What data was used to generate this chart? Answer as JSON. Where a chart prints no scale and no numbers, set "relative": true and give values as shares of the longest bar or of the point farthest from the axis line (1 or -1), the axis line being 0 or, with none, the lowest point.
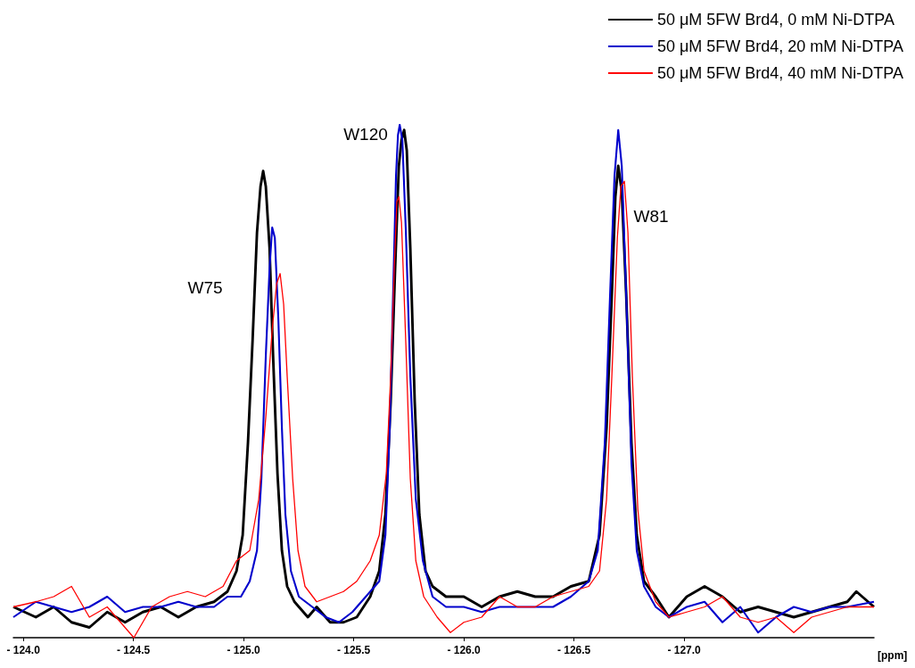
{
  "chart_data": {
    "type": "line",
    "relative": true,
    "xlabel": "[ppm]",
    "xlim": [
      -123.955,
      -127.862
    ],
    "xticks": [
      {
        "value": -124.0,
        "label": "- 124.0"
      },
      {
        "value": -124.5,
        "label": "- 124.5"
      },
      {
        "value": -125.0,
        "label": "- 125.0"
      },
      {
        "value": -125.5,
        "label": "- 125.5"
      },
      {
        "value": -126.0,
        "label": "- 126.0"
      },
      {
        "value": -126.5,
        "label": "- 126.5"
      },
      {
        "value": -127.0,
        "label": "- 127.0"
      }
    ],
    "grid": false,
    "legend": "top right",
    "marker": "none",
    "line_style": "solid",
    "annotations": [
      "W75",
      "W120",
      "W81"
    ],
    "series": [
      {
        "name": "50 μM 5FW Brd4, 0 mM Ni-DTPA",
        "color": "#000000",
        "x": [
          -123.955,
          -124.057,
          -124.138,
          -124.219,
          -124.3,
          -124.381,
          -124.462,
          -124.543,
          -124.624,
          -124.704,
          -124.785,
          -124.866,
          -124.927,
          -124.968,
          -124.996,
          -125.02,
          -125.041,
          -125.061,
          -125.077,
          -125.089,
          -125.101,
          -125.118,
          -125.134,
          -125.154,
          -125.174,
          -125.198,
          -125.231,
          -125.292,
          -125.332,
          -125.393,
          -125.454,
          -125.514,
          -125.575,
          -125.616,
          -125.644,
          -125.668,
          -125.688,
          -125.705,
          -125.717,
          -125.729,
          -125.741,
          -125.757,
          -125.777,
          -125.798,
          -125.826,
          -125.858,
          -125.919,
          -126.0,
          -126.081,
          -126.162,
          -126.243,
          -126.324,
          -126.405,
          -126.486,
          -126.567,
          -126.616,
          -126.648,
          -126.672,
          -126.688,
          -126.701,
          -126.717,
          -126.737,
          -126.761,
          -126.785,
          -126.818,
          -126.871,
          -126.931,
          -127.012,
          -127.093,
          -127.174,
          -127.255,
          -127.336,
          -127.417,
          -127.498,
          -127.579,
          -127.66,
          -127.741,
          -127.782,
          -127.862
        ],
        "values": [
          0.06,
          0.04,
          0.06,
          0.03,
          0.02,
          0.05,
          0.03,
          0.05,
          0.06,
          0.04,
          0.06,
          0.07,
          0.09,
          0.13,
          0.2,
          0.38,
          0.58,
          0.79,
          0.88,
          0.91,
          0.88,
          0.76,
          0.55,
          0.32,
          0.17,
          0.1,
          0.07,
          0.04,
          0.06,
          0.03,
          0.03,
          0.04,
          0.08,
          0.13,
          0.24,
          0.46,
          0.72,
          0.92,
          0.97,
          0.99,
          0.95,
          0.76,
          0.46,
          0.24,
          0.13,
          0.1,
          0.08,
          0.08,
          0.06,
          0.08,
          0.09,
          0.08,
          0.08,
          0.1,
          0.11,
          0.2,
          0.41,
          0.67,
          0.86,
          0.92,
          0.87,
          0.67,
          0.38,
          0.2,
          0.11,
          0.08,
          0.04,
          0.08,
          0.1,
          0.08,
          0.05,
          0.06,
          0.05,
          0.04,
          0.05,
          0.06,
          0.07,
          0.09,
          0.06
        ]
      },
      {
        "name": "50 μM 5FW Brd4, 20 mM Ni-DTPA",
        "color": "#0000cc",
        "x": [
          -123.955,
          -124.057,
          -124.138,
          -124.219,
          -124.3,
          -124.381,
          -124.462,
          -124.543,
          -124.624,
          -124.704,
          -124.785,
          -124.866,
          -124.927,
          -124.988,
          -125.028,
          -125.061,
          -125.081,
          -125.101,
          -125.118,
          -125.13,
          -125.142,
          -125.158,
          -125.174,
          -125.19,
          -125.215,
          -125.251,
          -125.312,
          -125.373,
          -125.433,
          -125.494,
          -125.555,
          -125.616,
          -125.644,
          -125.664,
          -125.68,
          -125.692,
          -125.701,
          -125.709,
          -125.721,
          -125.737,
          -125.757,
          -125.782,
          -125.814,
          -125.858,
          -125.919,
          -126.0,
          -126.081,
          -126.162,
          -126.243,
          -126.324,
          -126.405,
          -126.486,
          -126.567,
          -126.608,
          -126.64,
          -126.664,
          -126.684,
          -126.701,
          -126.717,
          -126.737,
          -126.761,
          -126.785,
          -126.818,
          -126.871,
          -126.931,
          -127.012,
          -127.093,
          -127.174,
          -127.255,
          -127.336,
          -127.417,
          -127.498,
          -127.579,
          -127.66,
          -127.741,
          -127.862
        ],
        "values": [
          0.04,
          0.07,
          0.06,
          0.05,
          0.06,
          0.08,
          0.05,
          0.06,
          0.06,
          0.07,
          0.06,
          0.06,
          0.08,
          0.08,
          0.11,
          0.17,
          0.31,
          0.55,
          0.72,
          0.8,
          0.78,
          0.62,
          0.41,
          0.24,
          0.13,
          0.08,
          0.06,
          0.04,
          0.03,
          0.05,
          0.08,
          0.11,
          0.2,
          0.41,
          0.69,
          0.9,
          0.98,
          1,
          0.97,
          0.79,
          0.51,
          0.27,
          0.15,
          0.08,
          0.06,
          0.06,
          0.05,
          0.06,
          0.06,
          0.06,
          0.06,
          0.08,
          0.11,
          0.17,
          0.38,
          0.67,
          0.9,
          0.99,
          0.92,
          0.67,
          0.34,
          0.17,
          0.1,
          0.06,
          0.04,
          0.06,
          0.07,
          0.03,
          0.06,
          0.01,
          0.04,
          0.06,
          0.05,
          0.06,
          0.06,
          0.07
        ]
      },
      {
        "name": "50 μM 5FW Brd4, 40 mM Ni-DTPA",
        "color": "#ff0000",
        "x": [
          -123.955,
          -124.057,
          -124.138,
          -124.219,
          -124.3,
          -124.381,
          -124.502,
          -124.583,
          -124.664,
          -124.745,
          -124.826,
          -124.907,
          -124.968,
          -125.028,
          -125.069,
          -125.101,
          -125.13,
          -125.15,
          -125.166,
          -125.182,
          -125.198,
          -125.223,
          -125.247,
          -125.279,
          -125.332,
          -125.393,
          -125.454,
          -125.514,
          -125.575,
          -125.616,
          -125.648,
          -125.668,
          -125.684,
          -125.696,
          -125.705,
          -125.717,
          -125.737,
          -125.757,
          -125.782,
          -125.818,
          -125.879,
          -125.939,
          -126.0,
          -126.081,
          -126.162,
          -126.243,
          -126.324,
          -126.405,
          -126.486,
          -126.567,
          -126.616,
          -126.648,
          -126.672,
          -126.697,
          -126.713,
          -126.729,
          -126.745,
          -126.765,
          -126.79,
          -126.818,
          -126.871,
          -126.931,
          -127.012,
          -127.093,
          -127.174,
          -127.255,
          -127.336,
          -127.417,
          -127.498,
          -127.579,
          -127.66,
          -127.741,
          -127.862
        ],
        "values": [
          0.06,
          0.07,
          0.08,
          0.1,
          0.04,
          0.06,
          0,
          0.06,
          0.08,
          0.09,
          0.08,
          0.1,
          0.15,
          0.17,
          0.27,
          0.43,
          0.6,
          0.69,
          0.71,
          0.65,
          0.51,
          0.31,
          0.17,
          0.1,
          0.07,
          0.08,
          0.09,
          0.11,
          0.15,
          0.2,
          0.32,
          0.51,
          0.72,
          0.85,
          0.86,
          0.81,
          0.57,
          0.31,
          0.15,
          0.08,
          0.04,
          0.01,
          0.03,
          0.04,
          0.08,
          0.06,
          0.06,
          0.08,
          0.09,
          0.1,
          0.13,
          0.27,
          0.51,
          0.78,
          0.88,
          0.89,
          0.79,
          0.51,
          0.25,
          0.13,
          0.07,
          0.04,
          0.05,
          0.06,
          0.08,
          0.04,
          0.03,
          0.04,
          0.01,
          0.04,
          0.05,
          0.06,
          0.06
        ]
      }
    ]
  }
}
